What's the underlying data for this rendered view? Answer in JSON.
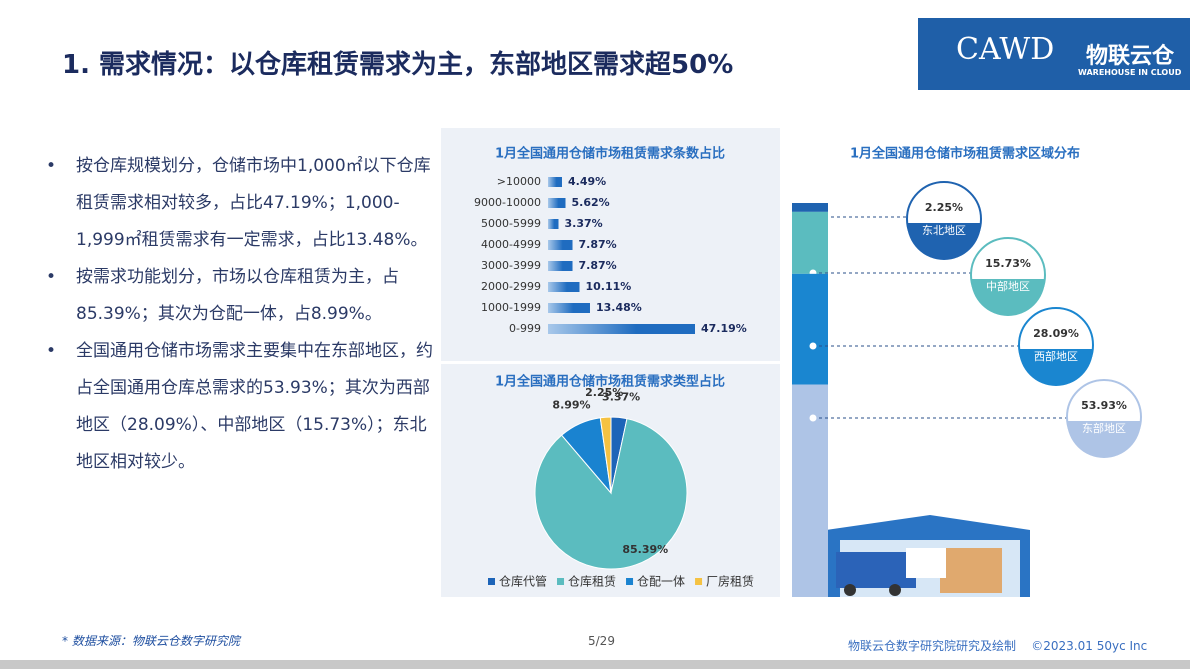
{
  "title": "1. 需求情况：以仓库租赁需求为主，东部地区需求超50%",
  "logo": {
    "cawd": "CAWD",
    "brand": "物联云仓",
    "brand_sub": "WAREHOUSE IN CLOUD"
  },
  "bullets": [
    "按仓库规模划分，仓储市场中1,000㎡以下仓库租赁需求相对较多，占比47.19%；1,000-1,999㎡租赁需求有一定需求，占比13.48%。",
    "按需求功能划分，市场以仓库租赁为主，占85.39%；其次为仓配一体，占8.99%。",
    "全国通用仓储市场需求主要集中在东部地区，约占全国通用仓库总需求的53.93%；其次为西部地区（28.09%）、中部地区（15.73%）；东北地区相对较少。"
  ],
  "footer": {
    "source": "* 数据来源：物联云仓数字研究院",
    "page": "5/29",
    "credit": "物联云仓数字研究院研究及绘制    ©2023.01 50yc Inc"
  },
  "chart_data": [
    {
      "type": "hbar",
      "title": "1月全国通用仓储市场租赁需求条数占比",
      "categories": [
        ">10000",
        "9000-10000",
        "5000-5999",
        "4000-4999",
        "3000-3999",
        "2000-2999",
        "1000-1999",
        "0-999"
      ],
      "values": [
        4.49,
        5.62,
        3.37,
        7.87,
        7.87,
        10.11,
        13.48,
        47.19
      ],
      "value_labels": [
        "4.49%",
        "5.62%",
        "3.37%",
        "7.87%",
        "7.87%",
        "10.11%",
        "13.48%",
        "47.19%"
      ],
      "color": "#1f6cc0"
    },
    {
      "type": "pie",
      "title": "1月全国通用仓储市场租赁需求类型占比",
      "categories": [
        "仓库代管",
        "仓库租赁",
        "仓配一体",
        "厂房租赁"
      ],
      "values": [
        3.37,
        85.39,
        8.99,
        2.25
      ],
      "value_labels": [
        "3.37%",
        "85.39%",
        "8.99%",
        "2.25%"
      ],
      "colors": [
        "#1d64b8",
        "#5bbcbf",
        "#1a83d0",
        "#f5c242"
      ]
    },
    {
      "type": "stacked",
      "title": "1月全国通用仓储市场租赁需求区域分布",
      "categories": [
        "东北地区",
        "中部地区",
        "西部地区",
        "东部地区"
      ],
      "values": [
        2.25,
        15.73,
        28.09,
        53.93
      ],
      "value_labels": [
        "2.25%",
        "15.73%",
        "28.09%",
        "53.93%"
      ],
      "colors": [
        "#1f63b0",
        "#5bbcbf",
        "#1a86d0",
        "#aec4e6"
      ]
    }
  ]
}
